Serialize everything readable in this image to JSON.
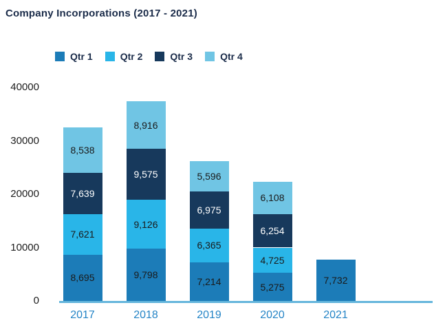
{
  "title": "Company Incorporations (2017 - 2021)",
  "colors": {
    "title_text": "#1a2b49",
    "legend_text": "#1a2b49",
    "axis_line": "#63b5dc",
    "y_tick_text": "#1c1c1c",
    "x_tick_text": "#2484c6",
    "background": "#ffffff"
  },
  "chart_data": {
    "type": "bar",
    "stacked": true,
    "title": "Company Incorporations (2017 - 2021)",
    "categories": [
      "2017",
      "2018",
      "2019",
      "2020",
      "2021"
    ],
    "series": [
      {
        "name": "Qtr 1",
        "color": "#1c7cb8",
        "label_color": "#1a1a1a",
        "values": [
          8695,
          9798,
          7214,
          5275,
          7732
        ]
      },
      {
        "name": "Qtr 2",
        "color": "#29b5e8",
        "label_color": "#1a1a1a",
        "values": [
          7621,
          9126,
          6365,
          4725,
          null
        ]
      },
      {
        "name": "Qtr 3",
        "color": "#17395c",
        "label_color": "#ffffff",
        "values": [
          7639,
          9575,
          6975,
          6254,
          null
        ]
      },
      {
        "name": "Qtr 4",
        "color": "#70c5e4",
        "label_color": "#1a1a1a",
        "values": [
          8538,
          8916,
          5596,
          6108,
          null
        ]
      }
    ],
    "data_labels": [
      [
        "8,695",
        "9,798",
        "7,214",
        "5,275",
        "7,732"
      ],
      [
        "7,621",
        "9,126",
        "6,365",
        "4,725",
        null
      ],
      [
        "7,639",
        "9,575",
        "6,975",
        "6,254",
        null
      ],
      [
        "8,538",
        "8,916",
        "5,596",
        "6,108",
        null
      ]
    ],
    "xlabel": "",
    "ylabel": "",
    "yticks": [
      0,
      10000,
      20000,
      30000,
      40000
    ],
    "ylim": [
      0,
      40000
    ],
    "legend_position": "top",
    "grid": false
  }
}
